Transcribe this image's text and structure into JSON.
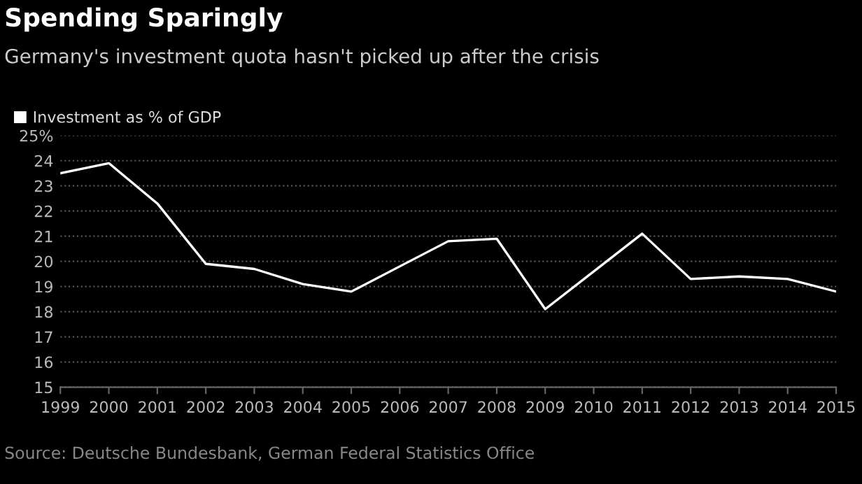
{
  "chart_data": {
    "type": "line",
    "title": "Spending Sparingly",
    "subtitle": "Germany's investment quota hasn't picked up after the crisis",
    "x": [
      1999,
      2000,
      2001,
      2002,
      2003,
      2004,
      2005,
      2006,
      2007,
      2008,
      2009,
      2010,
      2011,
      2012,
      2013,
      2014,
      2015
    ],
    "series": [
      {
        "name": "Investment as % of GDP",
        "color": "#ffffff",
        "values": [
          23.5,
          23.9,
          22.3,
          19.9,
          19.7,
          19.1,
          18.8,
          19.8,
          20.8,
          20.9,
          18.1,
          19.6,
          21.1,
          19.3,
          19.4,
          19.3,
          18.8
        ]
      }
    ],
    "xlim": [
      1999,
      2015
    ],
    "xticks": [
      1999,
      2000,
      2001,
      2002,
      2003,
      2004,
      2005,
      2006,
      2007,
      2008,
      2009,
      2010,
      2011,
      2012,
      2013,
      2014,
      2015
    ],
    "ylim": [
      15,
      25
    ],
    "yticks": [
      15,
      16,
      17,
      18,
      19,
      20,
      21,
      22,
      23,
      24,
      {
        "value": 25,
        "label": "25%"
      }
    ],
    "grid": "y",
    "legend": "top left",
    "line_style": "solid",
    "marker": "none",
    "annotations": [
      "Source: Deutsche Bundesbank, German Federal Statistics Office"
    ]
  }
}
